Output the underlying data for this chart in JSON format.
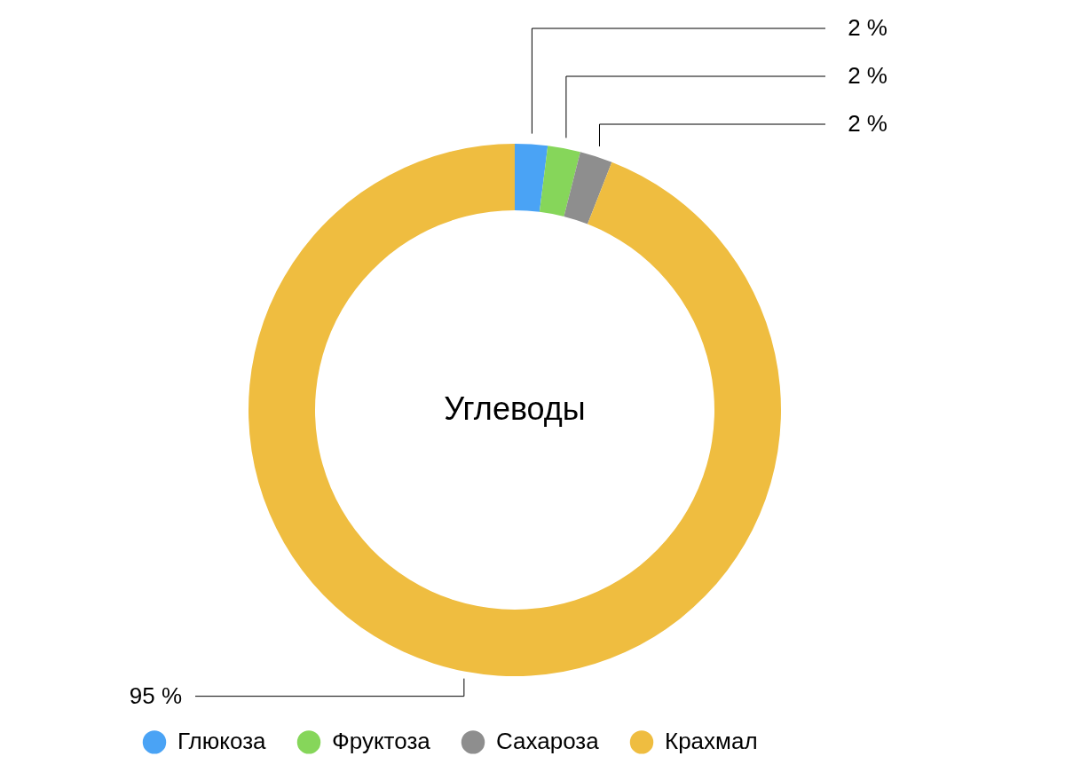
{
  "chart_data": {
    "type": "donut",
    "title": "Углеводы",
    "categories": [
      "Глюкоза",
      "Фруктоза",
      "Сахароза",
      "Крахмал"
    ],
    "values": [
      2,
      2,
      2,
      95
    ],
    "colors": [
      "#4aa3f5",
      "#86d65a",
      "#8e8e8e",
      "#efbd40"
    ],
    "value_labels": [
      "2 %",
      "2 %",
      "2 %",
      "95 %"
    ],
    "legend": "bottom"
  }
}
